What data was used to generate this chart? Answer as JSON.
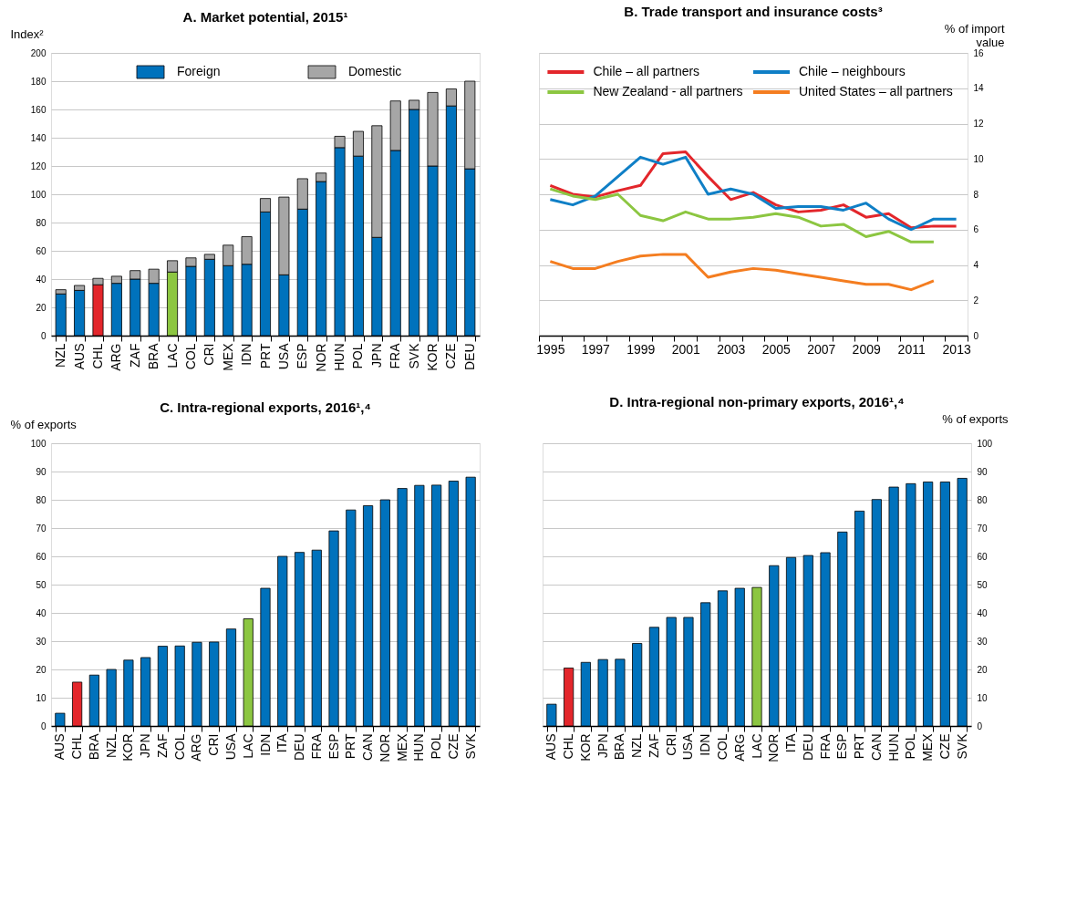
{
  "chart_data": [
    {
      "type": "bar",
      "title": "A. Market potential, 2015¹",
      "ylabel": "Index²",
      "stacked": true,
      "grid": "y",
      "legend": "top",
      "categories": [
        "NZL",
        "AUS",
        "CHL",
        "ARG",
        "ZAF",
        "BRA",
        "LAC",
        "COL",
        "CRI",
        "MEX",
        "IDN",
        "PRT",
        "USA",
        "ESP",
        "NOR",
        "HUN",
        "POL",
        "JPN",
        "FRA",
        "SVK",
        "KOR",
        "CZE",
        "DEU"
      ],
      "ylim": [
        0,
        200
      ],
      "yticks": [
        0,
        20,
        40,
        60,
        80,
        100,
        120,
        140,
        160,
        180,
        200
      ],
      "series": [
        {
          "name": "Foreign",
          "color": "#0072bc",
          "colors": [
            "#0072bc",
            "#0072bc",
            "#e3262b",
            "#0072bc",
            "#0072bc",
            "#0072bc",
            "#8cc641",
            "#0072bc",
            "#0072bc",
            "#0072bc",
            "#0072bc",
            "#0072bc",
            "#0072bc",
            "#0072bc",
            "#0072bc",
            "#0072bc",
            "#0072bc",
            "#0072bc",
            "#0072bc",
            "#0072bc",
            "#0072bc",
            "#0072bc",
            "#0072bc"
          ],
          "values": [
            29.5,
            32,
            36,
            37,
            40,
            37,
            45,
            49,
            54,
            49.5,
            50.5,
            87.5,
            43,
            89.5,
            109,
            133,
            127,
            69.5,
            131,
            160,
            120,
            162.5,
            118
          ]
        },
        {
          "name": "Domestic",
          "color": "#a6a6a6",
          "values": [
            3,
            3.5,
            4.5,
            5,
            6,
            10,
            8,
            6,
            3.5,
            14.5,
            19.5,
            9.5,
            55,
            21.5,
            6,
            8,
            17.5,
            79,
            35,
            6.5,
            52,
            12,
            62
          ]
        }
      ]
    },
    {
      "type": "line",
      "title": "B. Trade transport and insurance costs³",
      "y2label": "% of import value",
      "grid": "y",
      "legend": "top left",
      "marker": "none",
      "line_style": "solid",
      "categories": [
        "1995",
        null,
        "1997",
        null,
        "1999",
        null,
        "2001",
        null,
        "2003",
        null,
        "2005",
        null,
        "2007",
        null,
        "2009",
        null,
        "2011",
        null,
        "2013"
      ],
      "y2lim": [
        0,
        16
      ],
      "y2ticks": [
        0,
        2,
        4,
        6,
        8,
        10,
        12,
        14,
        16
      ],
      "series": [
        {
          "name": "Chile – all partners",
          "color": "#e3262b",
          "axis": "y2",
          "values": [
            8.5,
            8.0,
            7.85,
            8.2,
            8.5,
            10.3,
            10.4,
            9.0,
            7.7,
            8.1,
            7.4,
            7.0,
            7.1,
            7.4,
            6.7,
            6.9,
            6.1,
            6.2,
            6.2
          ]
        },
        {
          "name": "Chile – neighbours",
          "color": "#0f7fc6",
          "axis": "y2",
          "values": [
            7.7,
            7.4,
            7.9,
            9.0,
            10.1,
            9.7,
            10.1,
            8.0,
            8.3,
            8.0,
            7.2,
            7.3,
            7.3,
            7.1,
            7.5,
            6.6,
            6.0,
            6.6,
            6.6
          ]
        },
        {
          "name": "New Zealand - all partners",
          "color": "#8cc641",
          "axis": "y2",
          "values": [
            8.3,
            7.9,
            7.7,
            8.0,
            6.8,
            6.5,
            7.0,
            6.6,
            6.6,
            6.7,
            6.9,
            6.7,
            6.2,
            6.3,
            5.6,
            5.9,
            5.3,
            5.3,
            null
          ]
        },
        {
          "name": "United States – all partners",
          "color": "#f47d20",
          "axis": "y2",
          "values": [
            4.2,
            3.8,
            3.8,
            4.2,
            4.5,
            4.6,
            4.6,
            3.3,
            3.6,
            3.8,
            3.7,
            3.5,
            3.3,
            3.1,
            2.9,
            2.9,
            2.6,
            3.1,
            null
          ]
        }
      ]
    },
    {
      "type": "bar",
      "title": "C. Intra-regional exports, 2016¹,⁴",
      "ylabel": "% of exports",
      "grid": "y",
      "categories": [
        "AUS",
        "CHL",
        "BRA",
        "NZL",
        "KOR",
        "JPN",
        "ZAF",
        "COL",
        "ARG",
        "CRI",
        "USA",
        "LAC",
        "IDN",
        "ITA",
        "DEU",
        "FRA",
        "ESP",
        "PRT",
        "CAN",
        "NOR",
        "MEX",
        "HUN",
        "POL",
        "CZE",
        "SVK"
      ],
      "ylim": [
        0,
        100
      ],
      "yticks": [
        0,
        10,
        20,
        30,
        40,
        50,
        60,
        70,
        80,
        90,
        100
      ],
      "series": [
        {
          "colors": [
            "#0072bc",
            "#e3262b",
            "#0072bc",
            "#0072bc",
            "#0072bc",
            "#0072bc",
            "#0072bc",
            "#0072bc",
            "#0072bc",
            "#0072bc",
            "#0072bc",
            "#8cc641",
            "#0072bc",
            "#0072bc",
            "#0072bc",
            "#0072bc",
            "#0072bc",
            "#0072bc",
            "#0072bc",
            "#0072bc",
            "#0072bc",
            "#0072bc",
            "#0072bc",
            "#0072bc",
            "#0072bc"
          ],
          "values": [
            4.5,
            15.5,
            18,
            20,
            23.3,
            24.2,
            28.2,
            28.3,
            29.6,
            29.7,
            34.3,
            37.9,
            48.7,
            60,
            61.4,
            62.2,
            69,
            76.4,
            77.9,
            80,
            84,
            85.1,
            85.2,
            86.6,
            88
          ]
        }
      ]
    },
    {
      "type": "bar",
      "title": "D. Intra-regional non-primary exports, 2016¹,⁴",
      "y2label": "% of exports",
      "grid": "y",
      "categories": [
        "AUS",
        "CHL",
        "KOR",
        "JPN",
        "BRA",
        "NZL",
        "ZAF",
        "CRI",
        "USA",
        "IDN",
        "COL",
        "ARG",
        "LAC",
        "NOR",
        "ITA",
        "DEU",
        "FRA",
        "ESP",
        "PRT",
        "CAN",
        "HUN",
        "POL",
        "MEX",
        "CZE",
        "SVK"
      ],
      "y2lim": [
        0,
        100
      ],
      "y2ticks": [
        0,
        10,
        20,
        30,
        40,
        50,
        60,
        70,
        80,
        90,
        100
      ],
      "series": [
        {
          "axis": "y2",
          "colors": [
            "#0072bc",
            "#e3262b",
            "#0072bc",
            "#0072bc",
            "#0072bc",
            "#0072bc",
            "#0072bc",
            "#0072bc",
            "#0072bc",
            "#0072bc",
            "#0072bc",
            "#0072bc",
            "#8cc641",
            "#0072bc",
            "#0072bc",
            "#0072bc",
            "#0072bc",
            "#0072bc",
            "#0072bc",
            "#0072bc",
            "#0072bc",
            "#0072bc",
            "#0072bc",
            "#0072bc",
            "#0072bc"
          ],
          "values": [
            7.7,
            20.5,
            22.5,
            23.5,
            23.6,
            29.2,
            34.9,
            38.4,
            38.4,
            43.6,
            47.8,
            48.7,
            49,
            56.7,
            59.6,
            60.3,
            61.3,
            68.6,
            76,
            80.1,
            84.5,
            85.7,
            86.3,
            86.3,
            87.6
          ]
        }
      ]
    }
  ]
}
